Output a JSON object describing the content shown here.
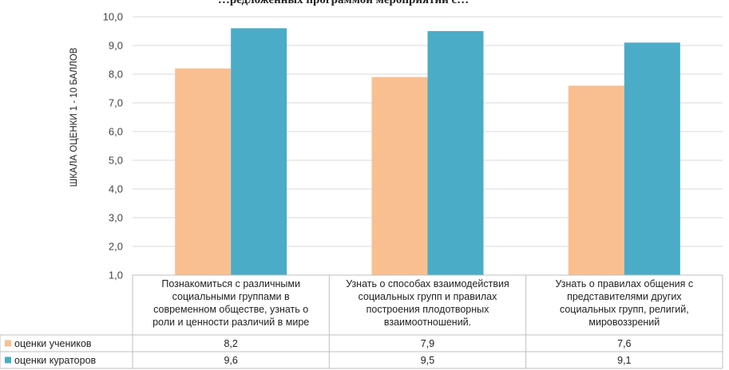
{
  "chart_data": {
    "type": "bar",
    "title": "…редложенных программой мероприятий с…",
    "ylabel": "ШКАЛА ОЦЕНКИ 1 - 10 БАЛЛОВ",
    "xlabel": "",
    "ylim": [
      1,
      10
    ],
    "yticks": [
      "1,0",
      "2,0",
      "3,0",
      "4,0",
      "5,0",
      "6,0",
      "7,0",
      "8,0",
      "9,0",
      "10,0"
    ],
    "categories": [
      [
        "Познакомиться с различными",
        "социальными группами в",
        "современном обществе, узнать о",
        "роли и ценности различий в мире"
      ],
      [
        "Узнать о способах взаимодействия",
        "социальных групп и правилах",
        "построения плодотворных",
        "взаимоотношений."
      ],
      [
        "Узнать о правилах общения с",
        "представителями других",
        "социальных групп, религий,",
        "мировоззрений"
      ]
    ],
    "series": [
      {
        "name": "оценки учеников",
        "values": [
          8.2,
          7.9,
          7.6
        ],
        "labels": [
          "8,2",
          "7,9",
          "7,6"
        ],
        "color": "#F9BF91"
      },
      {
        "name": "оценки кураторов",
        "values": [
          9.6,
          9.5,
          9.1
        ],
        "labels": [
          "9,6",
          "9,5",
          "9,1"
        ],
        "color": "#4AACC6"
      }
    ],
    "grid": true,
    "legend": "data-table"
  }
}
